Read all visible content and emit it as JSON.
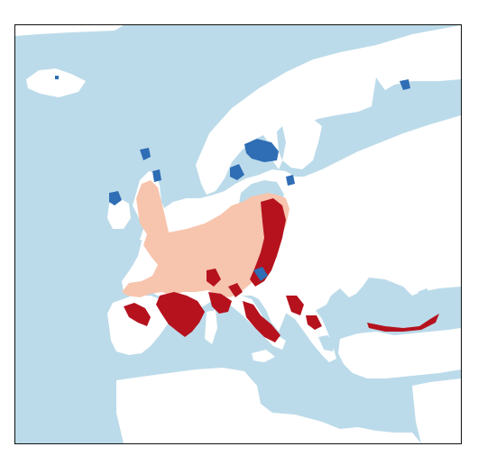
{
  "map": {
    "region": "Europe",
    "legend_colors": {
      "sea": "#bcdbea",
      "land": "#ffffff",
      "category_light_salmon": "#f7c4ad",
      "category_dark_red": "#b5121e",
      "category_blue": "#2f6db5"
    }
  }
}
